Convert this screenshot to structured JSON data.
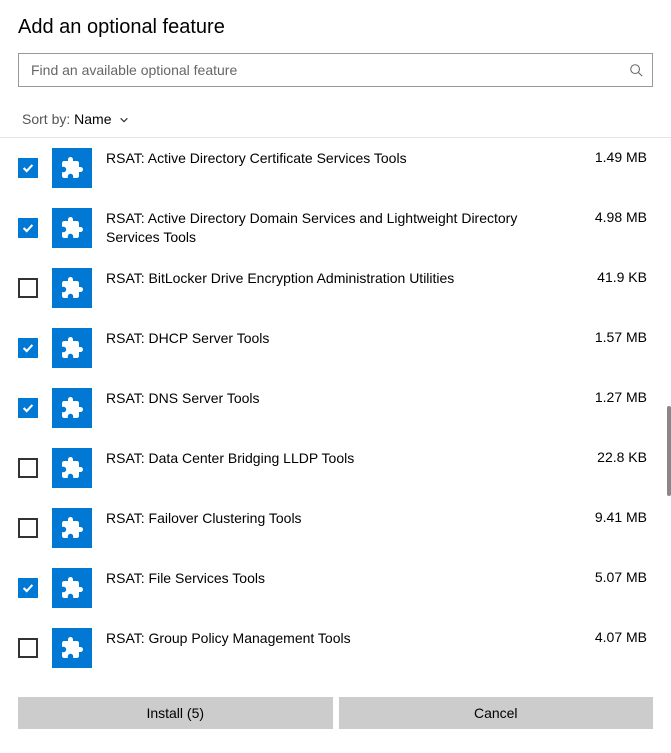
{
  "header": {
    "title": "Add an optional feature",
    "search_placeholder": "Find an available optional feature"
  },
  "sort": {
    "label": "Sort by:",
    "value": "Name"
  },
  "colors": {
    "accent": "#0078d4",
    "button_bg": "#cccccc",
    "border": "#999999",
    "text": "#000000"
  },
  "features": [
    {
      "name": "RSAT: Active Directory Certificate Services Tools",
      "size": "1.49 MB",
      "checked": true
    },
    {
      "name": "RSAT: Active Directory Domain Services and Lightweight Directory Services Tools",
      "size": "4.98 MB",
      "checked": true
    },
    {
      "name": "RSAT: BitLocker Drive Encryption Administration Utilities",
      "size": "41.9 KB",
      "checked": false
    },
    {
      "name": "RSAT: DHCP Server Tools",
      "size": "1.57 MB",
      "checked": true
    },
    {
      "name": "RSAT: DNS Server Tools",
      "size": "1.27 MB",
      "checked": true
    },
    {
      "name": "RSAT: Data Center Bridging LLDP Tools",
      "size": "22.8 KB",
      "checked": false
    },
    {
      "name": "RSAT: Failover Clustering Tools",
      "size": "9.41 MB",
      "checked": false
    },
    {
      "name": "RSAT: File Services Tools",
      "size": "5.07 MB",
      "checked": true
    },
    {
      "name": "RSAT: Group Policy Management Tools",
      "size": "4.07 MB",
      "checked": false
    }
  ],
  "footer": {
    "install_label": "Install (5)",
    "cancel_label": "Cancel"
  }
}
